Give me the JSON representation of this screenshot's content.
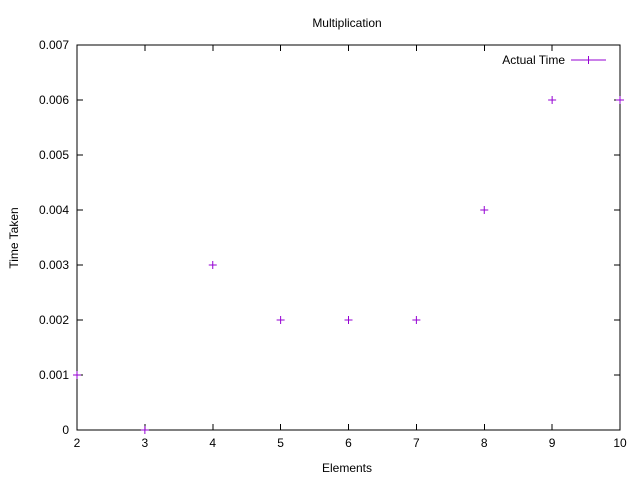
{
  "chart_data": {
    "type": "scatter",
    "title": "Multiplication",
    "xlabel": "Elements",
    "ylabel": "Time Taken",
    "xlim": [
      2,
      10
    ],
    "ylim": [
      0,
      0.007
    ],
    "xticks": [
      2,
      3,
      4,
      5,
      6,
      7,
      8,
      9,
      10
    ],
    "yticks": [
      0,
      0.001,
      0.002,
      0.003,
      0.004,
      0.005,
      0.006,
      0.007
    ],
    "ytick_labels": [
      "0",
      "0.001",
      "0.002",
      "0.003",
      "0.004",
      "0.005",
      "0.006",
      "0.007"
    ],
    "grid": false,
    "legend": "top-right",
    "series": [
      {
        "name": "Actual Time",
        "color": "#9400d3",
        "marker": "plus",
        "x": [
          2,
          3,
          4,
          5,
          6,
          7,
          8,
          9,
          10
        ],
        "y": [
          0.001,
          0,
          0.003,
          0.002,
          0.002,
          0.002,
          0.004,
          0.006,
          0.006
        ]
      }
    ]
  }
}
